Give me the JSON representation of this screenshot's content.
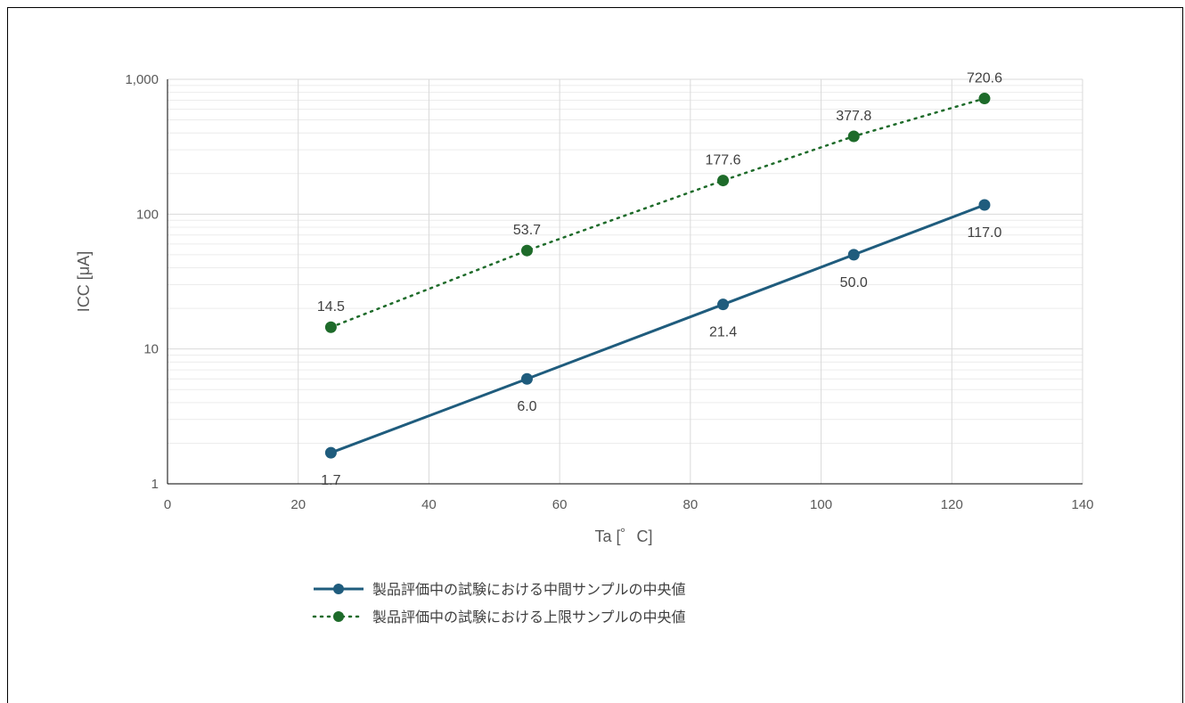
{
  "chart_data": {
    "type": "line",
    "xlabel": "Ta [゜C]",
    "ylabel": "ICC [μA]",
    "xlim": [
      0,
      140
    ],
    "x_ticks": [
      "0",
      "20",
      "40",
      "60",
      "80",
      "100",
      "120",
      "140"
    ],
    "y_scale": "log",
    "ylim": [
      1,
      1000
    ],
    "y_ticks": [
      "1",
      "10",
      "100",
      "1,000"
    ],
    "grid": true,
    "legend_position": "bottom",
    "series": [
      {
        "name": "製品評価中の試験における中間サンプルの中央値",
        "color": "#1f5c7d",
        "line_style": "solid",
        "x": [
          25,
          55,
          85,
          105,
          125
        ],
        "y": [
          1.7,
          6.0,
          21.4,
          50.0,
          117.0
        ],
        "labels": [
          "1.7",
          "6.0",
          "21.4",
          "50.0",
          "117.0"
        ]
      },
      {
        "name": "製品評価中の試験における上限サンプルの中央値",
        "color": "#1e6b2a",
        "line_style": "dotted",
        "x": [
          25,
          55,
          85,
          105,
          125
        ],
        "y": [
          14.5,
          53.7,
          177.6,
          377.8,
          720.6
        ],
        "labels": [
          "14.5",
          "53.7",
          "177.6",
          "377.8",
          "720.6"
        ]
      }
    ]
  }
}
